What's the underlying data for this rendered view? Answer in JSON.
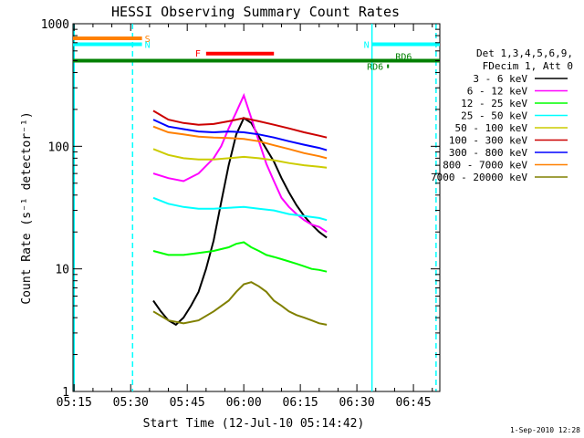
{
  "chart_data": {
    "type": "line",
    "title": "HESSI Observing Summary Count Rates",
    "xlabel": "Start Time (12-Jul-10 05:14:42)",
    "ylabel": "Count Rate (s⁻¹ detector⁻¹)",
    "yscale": "log",
    "ylim": [
      1,
      1000
    ],
    "xlim": [
      "05:14:42",
      "06:52:00"
    ],
    "x_ticks": [
      "05:15",
      "05:30",
      "05:45",
      "06:00",
      "06:15",
      "06:30",
      "06:45"
    ],
    "y_ticks": [
      "1",
      "10",
      "100",
      "1000"
    ],
    "legend_header": [
      "Det 1,3,4,5,6,9,",
      "FDecim 1, Att 0"
    ],
    "legend_position": "right",
    "timestamp": "1-Sep-2010 12:28",
    "flags": [
      {
        "label": "S",
        "color": "#ff8000",
        "start": "05:14:42",
        "end": "05:33:00",
        "level": 760
      },
      {
        "label": "N",
        "color": "#00ffff",
        "start": "05:14:42",
        "end": "05:33:00",
        "level": 680
      },
      {
        "label": "N",
        "color": "#00ffff",
        "start": "06:34:00",
        "end": "06:52:00",
        "level": 680
      },
      {
        "label": "F",
        "color": "#ff0000",
        "start": "05:50:00",
        "end": "06:08:00",
        "level": 570
      },
      {
        "label": "RD6",
        "color": "#008000",
        "start": "06:38:00",
        "end": "06:38:30",
        "level": 450
      },
      {
        "label": "RD6",
        "color": "#008000",
        "start": "06:39:00",
        "end": "06:39:30",
        "level": 500
      }
    ],
    "green_line": {
      "color": "#008000",
      "level": 500,
      "start": "05:14:42",
      "end": "06:52:00"
    },
    "vertical_lines": [
      {
        "time": "05:15:00",
        "color": "#00ffff",
        "style": "solid"
      },
      {
        "time": "05:30:30",
        "color": "#00ffff",
        "style": "dashed"
      },
      {
        "time": "06:34:00",
        "color": "#00ffff",
        "style": "solid"
      },
      {
        "time": "06:51:00",
        "color": "#00ffff",
        "style": "dashed"
      }
    ],
    "series": [
      {
        "name": "3 - 6 keV",
        "color": "#000000",
        "x": [
          "05:36",
          "05:38",
          "05:40",
          "05:42",
          "05:44",
          "05:46",
          "05:48",
          "05:50",
          "05:52",
          "05:54",
          "05:56",
          "05:58",
          "06:00",
          "06:02",
          "06:04",
          "06:06",
          "06:08",
          "06:10",
          "06:12",
          "06:14",
          "06:16",
          "06:18",
          "06:20",
          "06:22"
        ],
        "y": [
          5.5,
          4.5,
          3.8,
          3.5,
          4,
          5,
          6.5,
          10,
          17,
          35,
          70,
          125,
          170,
          155,
          120,
          95,
          75,
          55,
          42,
          33,
          27,
          23,
          20,
          18
        ]
      },
      {
        "name": "6 - 12 keV",
        "color": "#ff00ff",
        "x": [
          "05:36",
          "05:40",
          "05:44",
          "05:48",
          "05:52",
          "05:54",
          "05:56",
          "05:58",
          "06:00",
          "06:02",
          "06:04",
          "06:06",
          "06:08",
          "06:10",
          "06:12",
          "06:14",
          "06:16",
          "06:18",
          "06:20",
          "06:22"
        ],
        "y": [
          60,
          55,
          52,
          60,
          80,
          100,
          140,
          190,
          260,
          170,
          110,
          72,
          52,
          38,
          32,
          28,
          25,
          23,
          22,
          20
        ]
      },
      {
        "name": "12 - 25 keV",
        "color": "#00ff00",
        "x": [
          "05:36",
          "05:40",
          "05:44",
          "05:48",
          "05:52",
          "05:56",
          "05:58",
          "06:00",
          "06:02",
          "06:04",
          "06:06",
          "06:08",
          "06:10",
          "06:12",
          "06:14",
          "06:16",
          "06:18",
          "06:20",
          "06:22"
        ],
        "y": [
          14,
          13,
          13,
          13.5,
          14,
          15,
          16,
          16.5,
          15,
          14,
          13,
          12.5,
          12,
          11.5,
          11,
          10.5,
          10,
          9.8,
          9.5
        ]
      },
      {
        "name": "25 - 50 keV",
        "color": "#00ffff",
        "x": [
          "05:36",
          "05:40",
          "05:44",
          "05:48",
          "05:52",
          "05:56",
          "06:00",
          "06:04",
          "06:08",
          "06:12",
          "06:16",
          "06:20",
          "06:22"
        ],
        "y": [
          38,
          34,
          32,
          31,
          31,
          31.5,
          32,
          31,
          30,
          28,
          27,
          26,
          25
        ]
      },
      {
        "name": "50 - 100 keV",
        "color": "#cccc00",
        "x": [
          "05:36",
          "05:40",
          "05:44",
          "05:48",
          "05:52",
          "05:56",
          "06:00",
          "06:04",
          "06:08",
          "06:12",
          "06:16",
          "06:20",
          "06:22"
        ],
        "y": [
          95,
          85,
          80,
          78,
          78,
          80,
          82,
          80,
          77,
          73,
          70,
          68,
          67
        ]
      },
      {
        "name": "100 - 300 keV",
        "color": "#cc0000",
        "x": [
          "05:36",
          "05:40",
          "05:44",
          "05:48",
          "05:52",
          "05:56",
          "06:00",
          "06:04",
          "06:08",
          "06:12",
          "06:16",
          "06:20",
          "06:22"
        ],
        "y": [
          195,
          165,
          155,
          150,
          152,
          160,
          170,
          160,
          150,
          140,
          130,
          122,
          118
        ]
      },
      {
        "name": "300 - 800 keV",
        "color": "#0000ff",
        "x": [
          "05:36",
          "05:40",
          "05:44",
          "05:48",
          "05:52",
          "05:56",
          "06:00",
          "06:04",
          "06:08",
          "06:12",
          "06:16",
          "06:20",
          "06:22"
        ],
        "y": [
          165,
          145,
          138,
          132,
          130,
          132,
          130,
          125,
          118,
          110,
          103,
          97,
          93
        ]
      },
      {
        "name": "800 - 7000 keV",
        "color": "#ff8000",
        "x": [
          "05:36",
          "05:40",
          "05:44",
          "05:48",
          "05:52",
          "05:56",
          "06:00",
          "06:04",
          "06:08",
          "06:12",
          "06:16",
          "06:20",
          "06:22"
        ],
        "y": [
          145,
          130,
          125,
          120,
          118,
          117,
          115,
          110,
          102,
          95,
          88,
          83,
          80
        ]
      },
      {
        "name": "7000 - 20000 keV",
        "color": "#808000",
        "x": [
          "05:36",
          "05:40",
          "05:44",
          "05:48",
          "05:52",
          "05:56",
          "05:58",
          "06:00",
          "06:02",
          "06:04",
          "06:06",
          "06:08",
          "06:10",
          "06:12",
          "06:14",
          "06:16",
          "06:18",
          "06:20",
          "06:22"
        ],
        "y": [
          4.5,
          3.8,
          3.6,
          3.8,
          4.5,
          5.5,
          6.5,
          7.5,
          7.8,
          7.2,
          6.5,
          5.5,
          5,
          4.5,
          4.2,
          4,
          3.8,
          3.6,
          3.5
        ]
      }
    ]
  }
}
